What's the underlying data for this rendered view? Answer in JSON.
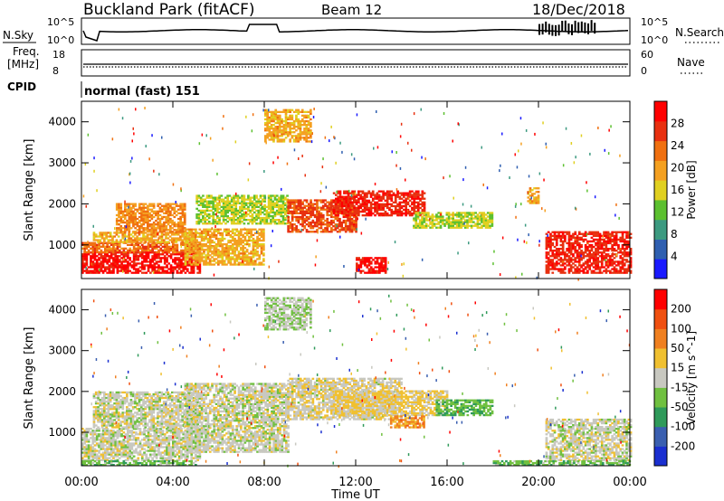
{
  "header": {
    "title": "Buckland Park (fitACF)",
    "beam": "Beam 12",
    "date": "18/Dec/2018"
  },
  "noise_panel": {
    "left_label": "N.Sky",
    "right_label": "N.Search",
    "ticks_left": [
      "10^5",
      "10^0"
    ],
    "ticks_right": [
      "10^5",
      "10^0"
    ]
  },
  "freq_panel": {
    "left_label_top": "Freq.",
    "left_label_unit": "[MHz]",
    "right_label": "Nave",
    "ticks_left": [
      "18",
      "8"
    ],
    "ticks_right": [
      "60",
      "0"
    ]
  },
  "cpid_panel": {
    "label": "CPID",
    "text": "normal (fast) 151"
  },
  "power_panel": {
    "ylabel": "Slant Range [km]",
    "yticks": [
      "4000",
      "3000",
      "2000",
      "1000"
    ],
    "colorbar_label": "Power [dB]",
    "colorbar_ticks": [
      "28",
      "24",
      "20",
      "16",
      "12",
      "8",
      "4"
    ],
    "colorbar_colors": [
      "#1a1aff",
      "#2f5fb0",
      "#3c9a80",
      "#5cc030",
      "#e0d020",
      "#f4a020",
      "#f07010",
      "#e83010",
      "#ff0000"
    ]
  },
  "velocity_panel": {
    "ylabel": "Slant Range [km]",
    "yticks": [
      "4000",
      "3000",
      "2000",
      "1000"
    ],
    "colorbar_label": "Velocity [m s^-1]",
    "colorbar_ticks": [
      "200",
      "100",
      "50",
      "15",
      "-15",
      "-50",
      "-100",
      "-200"
    ],
    "colorbar_colors": [
      "#1a2fd0",
      "#3a5fb0",
      "#2f9a5a",
      "#70c040",
      "#c8c8c0",
      "#f0c030",
      "#f08020",
      "#f05010",
      "#ff0000"
    ]
  },
  "xaxis": {
    "label": "Time UT",
    "ticks": [
      "00:00",
      "04:00",
      "08:00",
      "12:00",
      "16:00",
      "20:00",
      "00:00"
    ]
  },
  "chart_data": [
    {
      "type": "heatmap",
      "title": "Power",
      "xlabel": "Time UT",
      "ylabel": "Slant Range [km]",
      "xlim": [
        0,
        24
      ],
      "ylim": [
        180,
        4500
      ],
      "clim": [
        0,
        30
      ],
      "regions": [
        {
          "t0": 0.0,
          "t1": 5.2,
          "r0": 300,
          "r1": 800,
          "value": 28
        },
        {
          "t0": 0.0,
          "t1": 5.2,
          "r0": 800,
          "r1": 1050,
          "value": 22
        },
        {
          "t0": 0.5,
          "t1": 5.0,
          "r0": 1050,
          "r1": 1300,
          "value": 18
        },
        {
          "t0": 1.5,
          "t1": 4.5,
          "r0": 1300,
          "r1": 2000,
          "value": 20
        },
        {
          "t0": 4.5,
          "t1": 8.0,
          "r0": 500,
          "r1": 1400,
          "value": 18
        },
        {
          "t0": 5.0,
          "t1": 9.0,
          "r0": 1500,
          "r1": 2200,
          "value": 14
        },
        {
          "t0": 8.0,
          "t1": 10.0,
          "r0": 3500,
          "r1": 4300,
          "value": 18
        },
        {
          "t0": 9.0,
          "t1": 12.0,
          "r0": 1300,
          "r1": 2100,
          "value": 24
        },
        {
          "t0": 11.0,
          "t1": 15.0,
          "r0": 1700,
          "r1": 2300,
          "value": 26
        },
        {
          "t0": 12.0,
          "t1": 13.3,
          "r0": 300,
          "r1": 700,
          "value": 28
        },
        {
          "t0": 14.5,
          "t1": 18.0,
          "r0": 1400,
          "r1": 1800,
          "value": 14
        },
        {
          "t0": 19.5,
          "t1": 20.0,
          "r0": 2000,
          "r1": 2400,
          "value": 18
        },
        {
          "t0": 20.3,
          "t1": 24.0,
          "r0": 300,
          "r1": 1300,
          "value": 26
        }
      ]
    },
    {
      "type": "heatmap",
      "title": "Velocity",
      "xlabel": "Time UT",
      "ylabel": "Slant Range [km]",
      "xlim": [
        0,
        24
      ],
      "ylim": [
        180,
        4500
      ],
      "clim": [
        -200,
        200
      ],
      "regions": [
        {
          "t0": 0.0,
          "t1": 5.2,
          "r0": 300,
          "r1": 1100,
          "value": 0
        },
        {
          "t0": 0.5,
          "t1": 5.0,
          "r0": 1100,
          "r1": 2000,
          "value": 0
        },
        {
          "t0": 0.0,
          "t1": 5.0,
          "r0": 180,
          "r1": 300,
          "value": -50
        },
        {
          "t0": 4.5,
          "t1": 9.0,
          "r0": 500,
          "r1": 2200,
          "value": 0
        },
        {
          "t0": 8.0,
          "t1": 10.0,
          "r0": 3500,
          "r1": 4300,
          "value": -15
        },
        {
          "t0": 9.0,
          "t1": 14.0,
          "r0": 1300,
          "r1": 2300,
          "value": 10
        },
        {
          "t0": 11.0,
          "t1": 16.0,
          "r0": 1400,
          "r1": 2000,
          "value": 30
        },
        {
          "t0": 13.5,
          "t1": 15.0,
          "r0": 1100,
          "r1": 1400,
          "value": 80
        },
        {
          "t0": 15.5,
          "t1": 18.0,
          "r0": 1400,
          "r1": 1800,
          "value": -60
        },
        {
          "t0": 20.3,
          "t1": 24.0,
          "r0": 300,
          "r1": 1300,
          "value": 0
        },
        {
          "t0": 18.0,
          "t1": 24.0,
          "r0": 180,
          "r1": 300,
          "value": -50
        }
      ]
    }
  ]
}
